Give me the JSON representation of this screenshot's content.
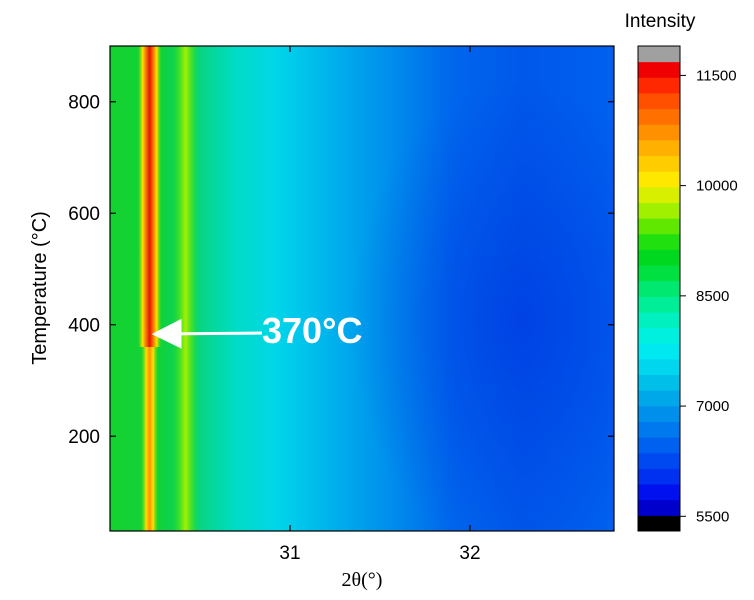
{
  "chart_data": {
    "type": "heatmap",
    "title": "",
    "xlabel": "2θ(°)",
    "ylabel": "Temperature (°C)",
    "xlim": [
      30.0,
      32.8
    ],
    "ylim": [
      30,
      900
    ],
    "xticks": [
      31,
      32
    ],
    "yticks": [
      200,
      400,
      600,
      800
    ],
    "colorbar": {
      "title": "Intensity",
      "range": [
        5300,
        11900
      ],
      "ticks": [
        5500,
        7000,
        8500,
        10000,
        11500
      ],
      "colors": [
        "#000000",
        "#0000cc",
        "#0010ee",
        "#0030f0",
        "#0048f0",
        "#0060f0",
        "#0078ee",
        "#0090ec",
        "#00a8ea",
        "#00c0ea",
        "#00d6ee",
        "#00e8f0",
        "#00f0e0",
        "#00f0c0",
        "#00ee98",
        "#00e870",
        "#00e040",
        "#00d820",
        "#20e010",
        "#60e800",
        "#a0f000",
        "#d8f000",
        "#ffe800",
        "#ffcc00",
        "#ffb000",
        "#ff9000",
        "#ff7000",
        "#ff5000",
        "#ff2800",
        "#f00000",
        "#a0a0a0"
      ]
    },
    "peaks": [
      {
        "two_theta": 30.22,
        "temperature_range": [
          30,
          900
        ],
        "max_intensity": 11500
      },
      {
        "two_theta": 30.42,
        "temperature_range": [
          30,
          900
        ],
        "max_intensity": 9300
      }
    ],
    "annotation": {
      "text": "370°C",
      "points_to": {
        "two_theta": 30.22,
        "temperature": 360
      }
    }
  }
}
